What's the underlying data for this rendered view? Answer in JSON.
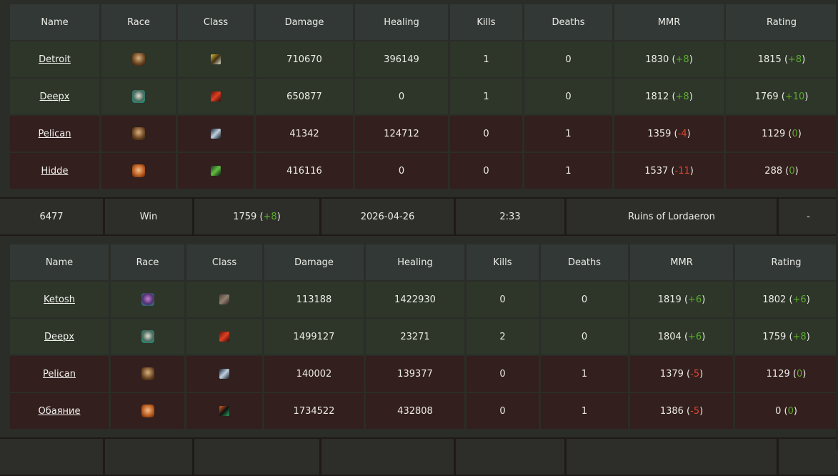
{
  "colors": {
    "header": "#323836",
    "win_row": "#2d3629",
    "loss_row": "#331f1e",
    "positive": "#5aae2a",
    "negative": "#e0452f",
    "background": "#2b2d28"
  },
  "columns": [
    "Name",
    "Race",
    "Class",
    "Damage",
    "Healing",
    "Kills",
    "Deaths",
    "MMR",
    "Rating"
  ],
  "matches": [
    {
      "players": [
        {
          "name": "Detroit",
          "result": "win",
          "race_icon": "human-male-icon",
          "class_icon": "paladin-icon",
          "damage": "710670",
          "healing": "396149",
          "kills": "1",
          "deaths": "0",
          "mmr": "1830",
          "mmr_diff": "+8",
          "rating": "1815",
          "rating_diff": "+8"
        },
        {
          "name": "Deepx",
          "result": "win",
          "race_icon": "undead-icon",
          "class_icon": "warrior-icon",
          "damage": "650877",
          "healing": "0",
          "kills": "1",
          "deaths": "0",
          "mmr": "1812",
          "mmr_diff": "+8",
          "rating": "1769",
          "rating_diff": "+10"
        },
        {
          "name": "Pelican",
          "result": "loss",
          "race_icon": "human-male-icon",
          "class_icon": "rogue-icon",
          "damage": "41342",
          "healing": "124712",
          "kills": "0",
          "deaths": "1",
          "mmr": "1359",
          "mmr_diff": "-4",
          "rating": "1129",
          "rating_diff": "0"
        },
        {
          "name": "Hidde",
          "result": "loss",
          "race_icon": "human-female-icon",
          "class_icon": "hunter-icon",
          "damage": "416116",
          "healing": "0",
          "kills": "0",
          "deaths": "1",
          "mmr": "1537",
          "mmr_diff": "-11",
          "rating": "288",
          "rating_diff": "0"
        }
      ]
    },
    {
      "players": [
        {
          "name": "Ketosh",
          "result": "win",
          "race_icon": "night-elf-female-icon",
          "class_icon": "druid-icon",
          "damage": "113188",
          "healing": "1422930",
          "kills": "0",
          "deaths": "0",
          "mmr": "1819",
          "mmr_diff": "+6",
          "rating": "1802",
          "rating_diff": "+6"
        },
        {
          "name": "Deepx",
          "result": "win",
          "race_icon": "undead-icon",
          "class_icon": "warrior-icon",
          "damage": "1499127",
          "healing": "23271",
          "kills": "2",
          "deaths": "0",
          "mmr": "1804",
          "mmr_diff": "+6",
          "rating": "1759",
          "rating_diff": "+8"
        },
        {
          "name": "Pelican",
          "result": "loss",
          "race_icon": "human-male-icon",
          "class_icon": "rogue-icon",
          "damage": "140002",
          "healing": "139377",
          "kills": "0",
          "deaths": "1",
          "mmr": "1379",
          "mmr_diff": "-5",
          "rating": "1129",
          "rating_diff": "0"
        },
        {
          "name": "Обаяние",
          "result": "loss",
          "race_icon": "human-female-icon",
          "class_icon": "death-knight-icon",
          "damage": "1734522",
          "healing": "432808",
          "kills": "0",
          "deaths": "1",
          "mmr": "1386",
          "mmr_diff": "-5",
          "rating": "0",
          "rating_diff": "0"
        }
      ]
    }
  ],
  "summary": {
    "id": "6477",
    "result": "Win",
    "rating": "1759",
    "rating_diff": "+8",
    "date": "2026-04-26",
    "duration": "2:33",
    "map": "Ruins of Lordaeron",
    "extra": "-"
  }
}
